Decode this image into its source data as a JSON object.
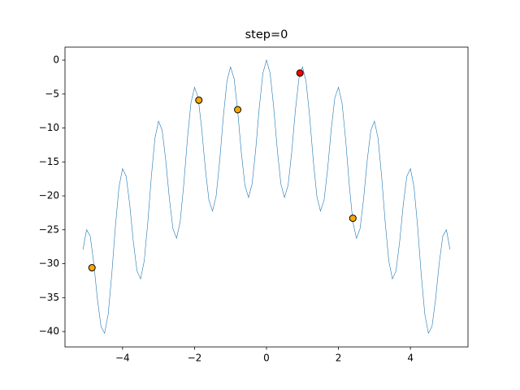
{
  "chart_data": {
    "type": "line",
    "title": "step=0",
    "color": "#1f77b4",
    "x": [
      -5.1,
      -5.0,
      -4.9,
      -4.8,
      -4.7,
      -4.6,
      -4.5,
      -4.4,
      -4.3,
      -4.2,
      -4.1,
      -4.0,
      -3.9,
      -3.8,
      -3.7,
      -3.6,
      -3.5,
      -3.4,
      -3.3,
      -3.2,
      -3.1,
      -3.0,
      -2.9,
      -2.8,
      -2.7,
      -2.6,
      -2.5,
      -2.4,
      -2.3,
      -2.2,
      -2.1,
      -2.0,
      -1.9,
      -1.8,
      -1.7,
      -1.6,
      -1.5,
      -1.4,
      -1.3,
      -1.2,
      -1.1,
      -1.0,
      -0.9,
      -0.8,
      -0.7,
      -0.6,
      -0.5,
      -0.4,
      -0.3,
      -0.2,
      -0.1,
      0,
      0.1,
      0.2,
      0.3,
      0.4,
      0.5,
      0.6,
      0.7,
      0.8,
      0.9,
      1.0,
      1.1,
      1.2,
      1.3,
      1.4,
      1.5,
      1.6,
      1.7,
      1.8,
      1.9,
      2.0,
      2.1,
      2.2,
      2.3,
      2.4,
      2.5,
      2.6,
      2.7,
      2.8,
      2.9,
      3.0,
      3.1,
      3.2,
      3.3,
      3.4,
      3.5,
      3.6,
      3.7,
      3.8,
      3.9,
      4.0,
      4.1,
      4.2,
      4.3,
      4.4,
      4.5,
      4.6,
      4.7,
      4.8,
      4.9,
      5.0,
      5.1
    ],
    "y": [
      -27.92,
      -25,
      -25.92,
      -29.95,
      -35.18,
      -39.25,
      -40.25,
      -37.45,
      -31.58,
      -24.55,
      -18.72,
      -16,
      -17.12,
      -21.35,
      -26.78,
      -31.05,
      -32.25,
      -29.65,
      -23.98,
      -17.15,
      -11.52,
      -9,
      -10.32,
      -14.75,
      -20.38,
      -24.85,
      -26.25,
      -23.85,
      -18.38,
      -11.75,
      -6.32,
      -4,
      -5.52,
      -10.15,
      -15.98,
      -20.65,
      -22.25,
      -20.05,
      -14.78,
      -8.35,
      -3.12,
      -1,
      -2.72,
      -7.55,
      -13.58,
      -18.45,
      -20.25,
      -18.25,
      -13.18,
      -6.95,
      -1.92,
      0,
      -1.92,
      -6.95,
      -13.18,
      -18.25,
      -20.25,
      -18.45,
      -13.58,
      -7.55,
      -2.72,
      -1,
      -3.12,
      -8.35,
      -14.78,
      -20.05,
      -22.25,
      -20.65,
      -15.98,
      -10.15,
      -5.52,
      -4,
      -6.32,
      -11.75,
      -18.38,
      -23.85,
      -26.25,
      -24.85,
      -20.38,
      -14.75,
      -10.32,
      -9,
      -11.52,
      -17.15,
      -23.98,
      -29.65,
      -32.25,
      -31.05,
      -26.78,
      -21.35,
      -17.12,
      -16,
      -18.72,
      -24.55,
      -31.58,
      -37.45,
      -40.25,
      -39.25,
      -35.18,
      -29.95,
      -25.92,
      -25,
      -27.92
    ],
    "series": [
      {
        "type": "scatter",
        "color": "#ffa500",
        "x": [
          -4.85,
          -1.88,
          -0.8,
          2.4
        ],
        "y": [
          -30.6,
          -5.9,
          -7.3,
          -23.3
        ]
      },
      {
        "type": "scatter",
        "color": "#ff0000",
        "x": [
          0.93
        ],
        "y": [
          -1.9
        ]
      }
    ],
    "xlim": [
      -5.6,
      5.6
    ],
    "ylim": [
      -42.27,
      1.92
    ],
    "xticks": [
      {
        "value": -4,
        "label": "−4"
      },
      {
        "value": -2,
        "label": "−2"
      },
      0,
      2,
      4
    ],
    "yticks": [
      0,
      {
        "value": -5,
        "label": "−5"
      },
      {
        "value": -10,
        "label": "−10"
      },
      {
        "value": -15,
        "label": "−15"
      },
      {
        "value": -20,
        "label": "−20"
      },
      {
        "value": -25,
        "label": "−25"
      },
      {
        "value": -30,
        "label": "−30"
      },
      {
        "value": -35,
        "label": "−35"
      },
      {
        "value": -40,
        "label": "−40"
      }
    ]
  }
}
